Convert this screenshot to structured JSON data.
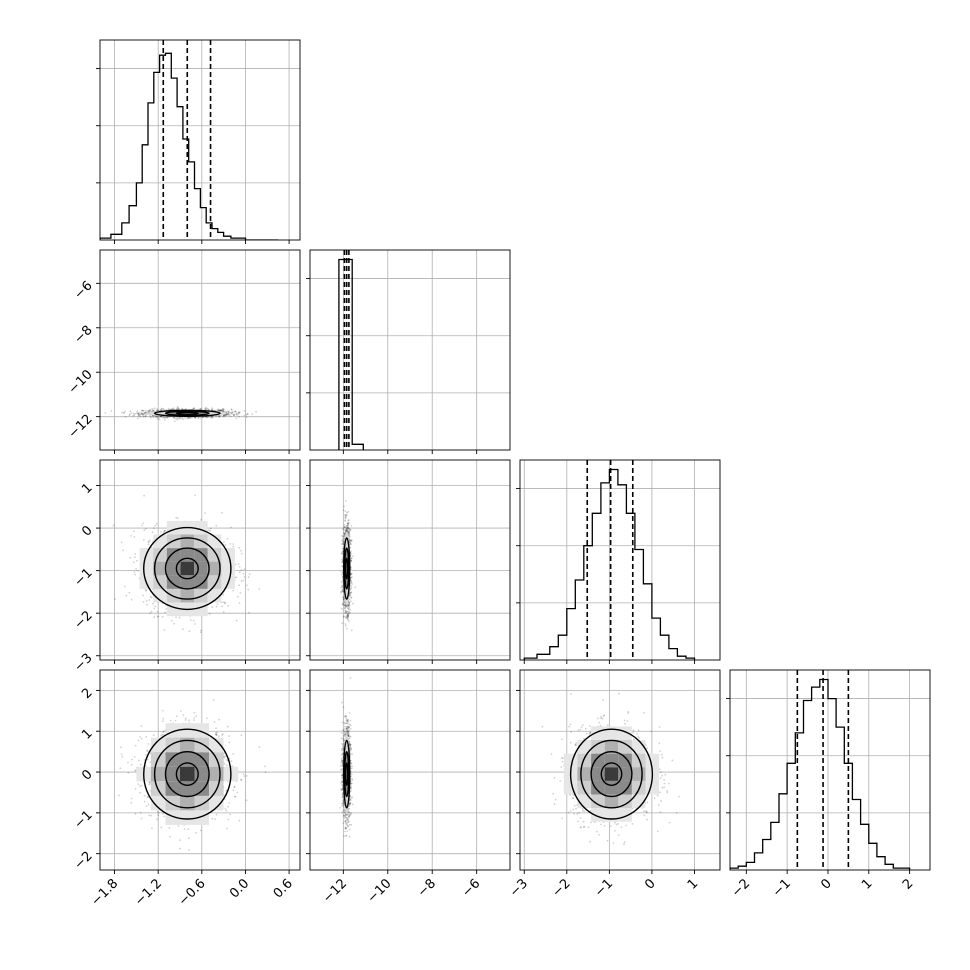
{
  "chart_data": {
    "type": "corner",
    "title": "",
    "parameters": 4,
    "parameter_labels": [
      "",
      "",
      "",
      ""
    ],
    "grid": true,
    "ranges": [
      [
        -2.0,
        0.75
      ],
      [
        -13.5,
        -4.5
      ],
      [
        -3.1,
        1.6
      ],
      [
        -2.4,
        2.5
      ]
    ],
    "ticks": [
      {
        "values": [
          -1.8,
          -1.2,
          -0.6,
          0.0,
          0.6
        ],
        "labels": [
          "−1.8",
          "−1.2",
          "−0.6",
          "0.0",
          "0.6"
        ]
      },
      {
        "values": [
          -12,
          -10,
          -8,
          -6
        ],
        "labels": [
          "−12",
          "−10",
          "−8",
          "−6"
        ]
      },
      {
        "values": [
          -3,
          -2,
          -1,
          0,
          1
        ],
        "labels": [
          "−3",
          "−2",
          "−1",
          "0",
          "1"
        ]
      },
      {
        "values": [
          -2,
          -1,
          0,
          1,
          2
        ],
        "labels": [
          "−2",
          "−1",
          "0",
          "1",
          "2"
        ]
      }
    ],
    "marginals": [
      {
        "param": 0,
        "quantiles": [
          -1.13,
          -0.8,
          -0.48
        ],
        "bins": [
          -2.0,
          -1.85,
          -1.7,
          -1.6,
          -1.5,
          -1.42,
          -1.34,
          -1.26,
          -1.18,
          -1.1,
          -1.02,
          -0.94,
          -0.86,
          -0.78,
          -0.7,
          -0.62,
          -0.54,
          -0.46,
          -0.38,
          -0.3,
          -0.2,
          -0.1,
          0.0,
          0.1,
          0.25,
          0.45
        ],
        "counts": [
          1,
          3,
          9,
          18,
          30,
          50,
          72,
          88,
          97,
          98,
          85,
          70,
          53,
          41,
          27,
          17,
          9,
          6,
          4,
          2,
          1,
          1,
          0,
          0,
          0
        ],
        "ylim": [
          0,
          105
        ]
      },
      {
        "param": 1,
        "quantiles": [
          -11.95,
          -11.85,
          -11.75
        ],
        "bins": [
          -12.2,
          -11.6,
          -11.1
        ],
        "counts": [
          100,
          3
        ],
        "ylim": [
          0,
          105
        ]
      },
      {
        "param": 2,
        "quantiles": [
          -1.52,
          -0.97,
          -0.45
        ],
        "bins": [
          -3.0,
          -2.7,
          -2.4,
          -2.2,
          -2.0,
          -1.8,
          -1.6,
          -1.4,
          -1.2,
          -1.0,
          -0.8,
          -0.6,
          -0.4,
          -0.2,
          0.0,
          0.2,
          0.4,
          0.6,
          0.8,
          1.0
        ],
        "counts": [
          1,
          3,
          7,
          13,
          27,
          42,
          60,
          77,
          93,
          100,
          92,
          77,
          58,
          40,
          22,
          13,
          6,
          2,
          1
        ],
        "ylim": [
          0,
          105
        ]
      },
      {
        "param": 3,
        "quantiles": [
          -0.75,
          -0.12,
          0.5
        ],
        "bins": [
          -2.4,
          -2.2,
          -2.0,
          -1.8,
          -1.6,
          -1.4,
          -1.2,
          -1.0,
          -0.8,
          -0.6,
          -0.4,
          -0.2,
          0.0,
          0.2,
          0.4,
          0.6,
          0.8,
          1.0,
          1.2,
          1.4,
          1.6,
          1.8,
          2.0
        ],
        "counts": [
          1,
          2,
          4,
          9,
          16,
          25,
          40,
          56,
          72,
          89,
          96,
          100,
          90,
          75,
          56,
          37,
          24,
          14,
          7,
          3,
          1,
          1
        ],
        "ylim": [
          0,
          105
        ]
      }
    ],
    "joints": [
      {
        "x": 0,
        "y": 1,
        "mean": [
          -0.8,
          -11.85
        ],
        "sd": [
          0.3,
          0.09
        ],
        "contour_sigmas": [
          0.5,
          1.0,
          1.5
        ]
      },
      {
        "x": 0,
        "y": 2,
        "mean": [
          -0.8,
          -0.95
        ],
        "sd": [
          0.3,
          0.48
        ],
        "contour_sigmas": [
          0.5,
          1.0,
          1.5,
          2.0
        ]
      },
      {
        "x": 1,
        "y": 2,
        "mean": [
          -11.85,
          -0.95
        ],
        "sd": [
          0.09,
          0.48
        ],
        "contour_sigmas": [
          0.5,
          1.0,
          1.5
        ]
      },
      {
        "x": 0,
        "y": 3,
        "mean": [
          -0.8,
          -0.05
        ],
        "sd": [
          0.3,
          0.55
        ],
        "contour_sigmas": [
          0.5,
          1.0,
          1.5,
          2.0
        ]
      },
      {
        "x": 1,
        "y": 3,
        "mean": [
          -11.85,
          -0.05
        ],
        "sd": [
          0.09,
          0.55
        ],
        "contour_sigmas": [
          0.5,
          1.0,
          1.5
        ]
      },
      {
        "x": 2,
        "y": 3,
        "mean": [
          -0.95,
          -0.05
        ],
        "sd": [
          0.48,
          0.55
        ],
        "contour_sigmas": [
          0.5,
          1.0,
          1.5,
          2.0
        ]
      }
    ]
  }
}
